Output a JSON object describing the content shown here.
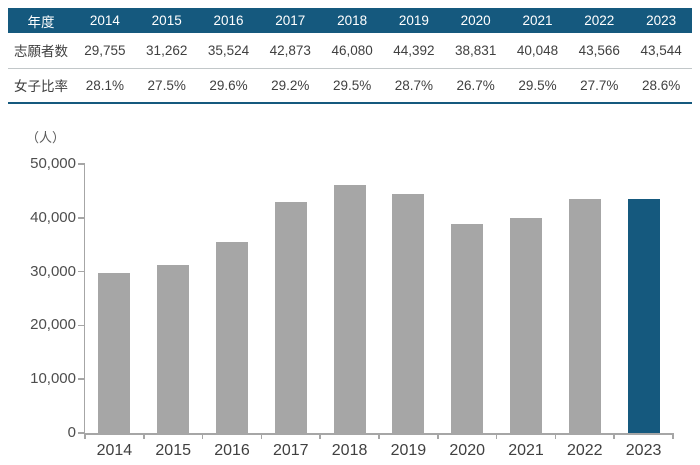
{
  "colors": {
    "accent": "#15597e",
    "bar_default": "#a6a6a6",
    "axis": "#a6a6a6",
    "header_text": "#ffffff",
    "body_text": "#404040"
  },
  "table": {
    "header_label": "年度",
    "years": [
      "2014",
      "2015",
      "2016",
      "2017",
      "2018",
      "2019",
      "2020",
      "2021",
      "2022",
      "2023"
    ],
    "rows": [
      {
        "label": "志願者数",
        "values": [
          "29,755",
          "31,262",
          "35,524",
          "42,873",
          "46,080",
          "44,392",
          "38,831",
          "40,048",
          "43,566",
          "43,544"
        ]
      },
      {
        "label": "女子比率",
        "values": [
          "28.1%",
          "27.5%",
          "29.6%",
          "29.2%",
          "29.5%",
          "28.7%",
          "26.7%",
          "29.5%",
          "27.7%",
          "28.6%"
        ]
      }
    ]
  },
  "chart_data": {
    "type": "bar",
    "unit_label": "（人）",
    "categories": [
      "2014",
      "2015",
      "2016",
      "2017",
      "2018",
      "2019",
      "2020",
      "2021",
      "2022",
      "2023"
    ],
    "values": [
      29755,
      31262,
      35524,
      42873,
      46080,
      44392,
      38831,
      40048,
      43566,
      43544
    ],
    "ylim": [
      0,
      50000
    ],
    "ytick_interval": 10000,
    "ytick_labels": [
      "0",
      "10,000",
      "20,000",
      "30,000",
      "40,000",
      "50,000"
    ],
    "grid": false,
    "legend": "none",
    "bar_color_default": "#a6a6a6",
    "bar_color_highlight": "#15597e",
    "highlight_index": 9
  }
}
